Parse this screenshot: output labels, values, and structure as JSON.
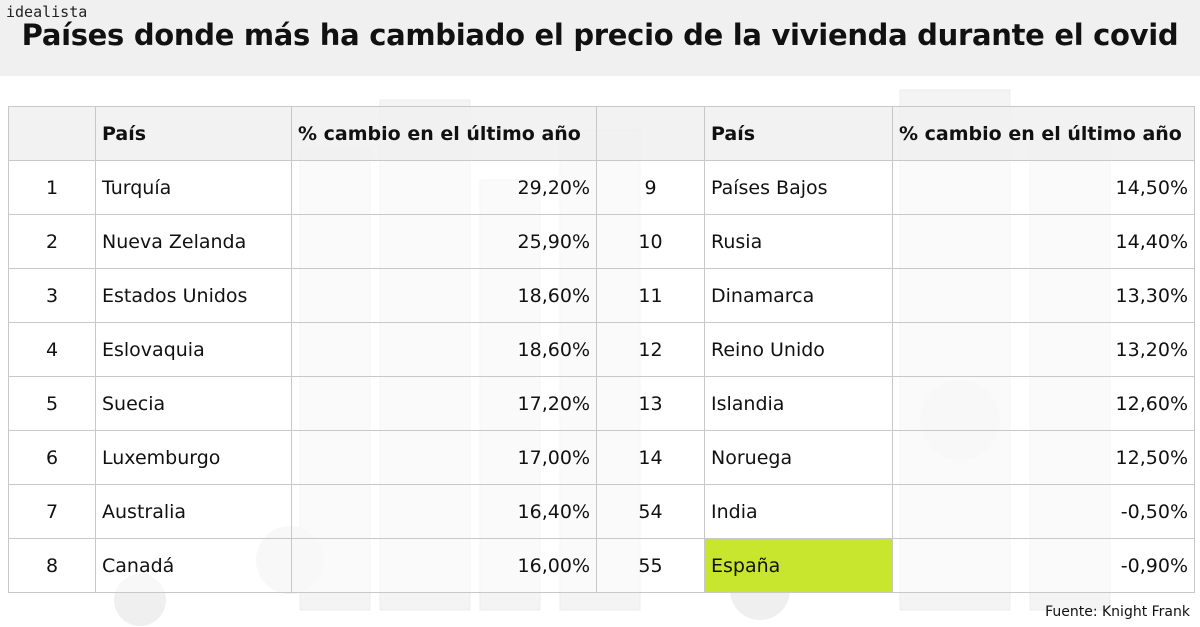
{
  "brand": "idealista",
  "title": "Países donde más ha cambiado el precio de la vivienda durante el covid",
  "source": "Fuente: Knight Frank",
  "colors": {
    "highlight": "#c8e62d",
    "header_bg": "#f0f0f0"
  },
  "chart_data": {
    "type": "table",
    "title": "Países donde más ha cambiado el precio de la vivienda durante el covid",
    "columns": [
      "",
      "País",
      "% cambio en el último año",
      "",
      "País",
      "% cambio en el último año"
    ],
    "left_rows": [
      {
        "rank": "1",
        "country": "Turquía",
        "change": "29,20%"
      },
      {
        "rank": "2",
        "country": "Nueva Zelanda",
        "change": "25,90%"
      },
      {
        "rank": "3",
        "country": "Estados Unidos",
        "change": "18,60%"
      },
      {
        "rank": "4",
        "country": "Eslovaquia",
        "change": "18,60%"
      },
      {
        "rank": "5",
        "country": "Suecia",
        "change": "17,20%"
      },
      {
        "rank": "6",
        "country": "Luxemburgo",
        "change": "17,00%"
      },
      {
        "rank": "7",
        "country": "Australia",
        "change": "16,40%"
      },
      {
        "rank": "8",
        "country": "Canadá",
        "change": "16,00%"
      }
    ],
    "right_rows": [
      {
        "rank": "9",
        "country": "Países Bajos",
        "change": "14,50%"
      },
      {
        "rank": "10",
        "country": "Rusia",
        "change": "14,40%"
      },
      {
        "rank": "11",
        "country": "Dinamarca",
        "change": "13,30%"
      },
      {
        "rank": "12",
        "country": "Reino Unido",
        "change": "13,20%"
      },
      {
        "rank": "13",
        "country": "Islandia",
        "change": "12,60%"
      },
      {
        "rank": "14",
        "country": "Noruega",
        "change": "12,50%"
      },
      {
        "rank": "54",
        "country": "India",
        "change": "-0,50%"
      },
      {
        "rank": "55",
        "country": "España",
        "change": "-0,90%",
        "highlight": true
      }
    ]
  }
}
